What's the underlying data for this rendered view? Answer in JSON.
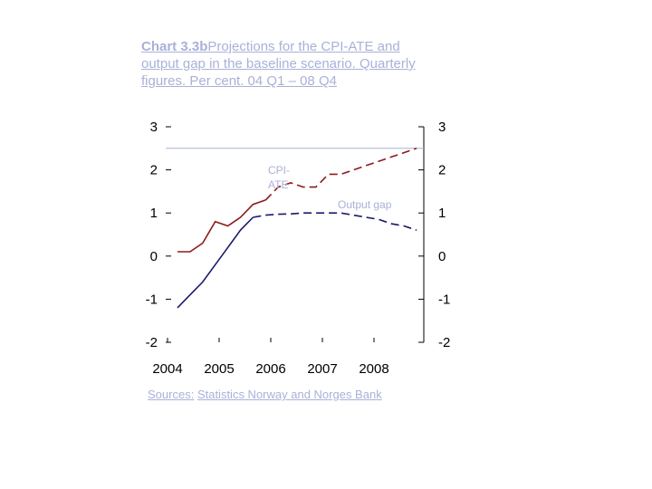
{
  "title": {
    "lead": "Chart 3.3b",
    "rest": "Projections for the CPI-ATE and output gap in the baseline scenario. Quarterly figures. Per cent. 04 Q1 – 08 Q4"
  },
  "sources": {
    "prefix": "Sources:",
    "text": "Statistics Norway and Norges Bank"
  },
  "colors": {
    "cpi": "#8b1a1a",
    "output_gap": "#1a1a6e",
    "ref_line": "#a9b1d8"
  },
  "chart_data": {
    "type": "line",
    "ylim": [
      -2,
      3
    ],
    "yticks": [
      "3",
      "2",
      "1",
      "0",
      "-1",
      "-2"
    ],
    "xticks": [
      "2004",
      "2005",
      "2006",
      "2007",
      "2008"
    ],
    "x_range": [
      "2004 Q1",
      "2008 Q4"
    ],
    "grid": false,
    "reference_line": 2.5,
    "series": [
      {
        "name": "CPI-ATE",
        "label": "CPI-ATE",
        "values": [
          0.1,
          0.1,
          0.3,
          0.8,
          0.7,
          0.9,
          1.2,
          1.3,
          1.6,
          1.7,
          1.6,
          1.6,
          1.9,
          1.9,
          2.0,
          2.1,
          2.2,
          2.3,
          2.4,
          2.5
        ]
      },
      {
        "name": "Output gap",
        "label": "Output gap",
        "values": [
          -1.2,
          -0.9,
          -0.6,
          -0.2,
          0.2,
          0.6,
          0.9,
          0.95,
          0.97,
          0.98,
          1.0,
          1.0,
          1.0,
          1.0,
          0.95,
          0.9,
          0.85,
          0.75,
          0.7,
          0.6
        ]
      }
    ]
  }
}
